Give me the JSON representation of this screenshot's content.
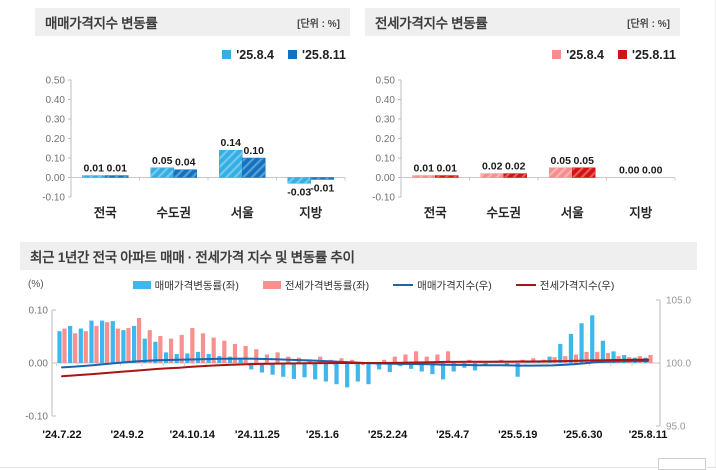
{
  "colors": {
    "header_bg": "#efefef",
    "axis": "#bdbdbd",
    "baseline": "#c9c9c9",
    "tick_text": "#737373",
    "sale_light": "#35aee4",
    "sale_dark": "#1272bf",
    "jeonse_light": "#f58f8f",
    "jeonse_dark": "#d51212",
    "trend_sale_bar": "#3db7ee",
    "trend_jeonse_bar": "#f98f8f",
    "trend_sale_line": "#1b65ae",
    "trend_jeonse_line": "#a81613"
  },
  "chart_data": [
    {
      "type": "bar",
      "title": "매매가격지수 변동률",
      "unit_label": "[단위 : %]",
      "categories": [
        "전국",
        "수도권",
        "서울",
        "지방"
      ],
      "series": [
        {
          "name": "'25.8.4",
          "color": "#35aee4",
          "values": [
            0.01,
            0.05,
            0.14,
            -0.03
          ]
        },
        {
          "name": "'25.8.11",
          "color": "#1272bf",
          "values": [
            0.01,
            0.04,
            0.1,
            -0.01
          ]
        }
      ],
      "ylim": [
        -0.1,
        0.5
      ],
      "yticks": [
        0.5,
        0.4,
        0.3,
        0.2,
        0.1,
        0.0,
        -0.1
      ],
      "legend_position": "top-right",
      "grid": false
    },
    {
      "type": "bar",
      "title": "전세가격지수 변동률",
      "unit_label": "[단위 : %]",
      "categories": [
        "전국",
        "수도권",
        "서울",
        "지방"
      ],
      "series": [
        {
          "name": "'25.8.4",
          "color": "#f58f8f",
          "values": [
            0.01,
            0.02,
            0.05,
            0.0
          ]
        },
        {
          "name": "'25.8.11",
          "color": "#d51212",
          "values": [
            0.01,
            0.02,
            0.05,
            0.0
          ]
        }
      ],
      "ylim": [
        -0.1,
        0.5
      ],
      "yticks": [
        0.5,
        0.4,
        0.3,
        0.2,
        0.1,
        0.0,
        -0.1
      ],
      "legend_position": "top-right",
      "grid": false
    },
    {
      "type": "combo",
      "title": "최근 1년간 전국 아파트 매매 · 전세가격 지수 및 변동률 추이",
      "left_axis_label": "(%)",
      "left_ylim": [
        -0.1,
        0.1
      ],
      "left_ticks": [
        0.1,
        0.0,
        -0.1
      ],
      "right_ylim": [
        95.0,
        105.0
      ],
      "right_ticks": [
        105.0,
        100.0,
        95.0
      ],
      "x_labels": [
        "'24.7.22",
        "'24.9.2",
        "'24.10.14",
        "'24.11.25",
        "'25.1.6",
        "'25.2.24",
        "'25.4.7",
        "'25.5.19",
        "'25.6.30",
        "'25.8.11"
      ],
      "bar_series": [
        {
          "name": "매매가격변동률(좌)",
          "color": "#3db7ee",
          "values": [
            0.06,
            0.07,
            0.065,
            0.08,
            0.08,
            0.079,
            0.062,
            0.07,
            0.046,
            0.04,
            0.02,
            0.017,
            0.018,
            0.021,
            0.017,
            0.013,
            0.012,
            0.008,
            -0.012,
            -0.018,
            -0.022,
            -0.026,
            -0.03,
            -0.027,
            -0.031,
            -0.035,
            -0.04,
            -0.046,
            -0.035,
            -0.04,
            -0.012,
            -0.017,
            -0.006,
            -0.011,
            -0.016,
            -0.021,
            -0.031,
            -0.016,
            -0.009,
            -0.014,
            -0.004,
            0.002,
            -0.005,
            -0.026,
            0.001,
            0.004,
            0.012,
            0.036,
            0.055,
            0.075,
            0.09,
            0.042,
            0.022,
            0.015,
            0.01,
            0.01
          ]
        },
        {
          "name": "전세가격변동률(좌)",
          "color": "#f98f8f",
          "values": [
            0.065,
            0.056,
            0.06,
            0.07,
            0.077,
            0.065,
            0.066,
            0.085,
            0.062,
            0.051,
            0.046,
            0.053,
            0.066,
            0.056,
            0.048,
            0.042,
            0.036,
            0.032,
            0.026,
            0.016,
            0.02,
            0.012,
            0.01,
            0.007,
            0.012,
            0.006,
            0.009,
            0.006,
            -0.004,
            -0.002,
            0.006,
            0.012,
            0.016,
            0.022,
            0.012,
            0.016,
            0.022,
            0.003,
            0.006,
            0.004,
            0.003,
            0.006,
            0.004,
            0.006,
            0.009,
            0.006,
            0.011,
            0.013,
            0.016,
            0.021,
            0.021,
            0.019,
            0.013,
            0.011,
            0.013,
            0.015
          ]
        }
      ],
      "line_series": [
        {
          "name": "매매가격지수(우)",
          "color": "#1b65ae",
          "values": [
            99.65,
            99.7,
            99.76,
            99.83,
            99.91,
            99.99,
            100.06,
            100.13,
            100.18,
            100.22,
            100.24,
            100.26,
            100.28,
            100.3,
            100.32,
            100.33,
            100.34,
            100.35,
            100.34,
            100.32,
            100.3,
            100.27,
            100.24,
            100.21,
            100.18,
            100.14,
            100.1,
            100.06,
            100.02,
            99.98,
            99.96,
            99.94,
            99.93,
            99.92,
            99.91,
            99.89,
            99.86,
            99.85,
            99.84,
            99.82,
            99.82,
            99.82,
            99.81,
            99.79,
            99.79,
            99.8,
            99.81,
            99.85,
            99.9,
            99.97,
            100.06,
            100.1,
            100.12,
            100.14,
            100.15,
            100.16
          ]
        },
        {
          "name": "전세가격지수(우)",
          "color": "#a81613",
          "values": [
            98.95,
            99.01,
            99.07,
            99.13,
            99.2,
            99.27,
            99.33,
            99.4,
            99.47,
            99.53,
            99.58,
            99.63,
            99.69,
            99.74,
            99.79,
            99.83,
            99.86,
            99.89,
            99.92,
            99.93,
            99.95,
            99.96,
            99.97,
            99.98,
            99.99,
            99.99,
            100.0,
            100.0,
            100.0,
            100.0,
            100.0,
            100.01,
            100.02,
            100.04,
            100.05,
            100.07,
            100.09,
            100.09,
            100.1,
            100.1,
            100.1,
            100.11,
            100.11,
            100.12,
            100.12,
            100.13,
            100.14,
            100.15,
            100.17,
            100.19,
            100.21,
            100.22,
            100.24,
            100.25,
            100.26,
            100.27
          ]
        }
      ],
      "legend_position": "top",
      "grid": false
    }
  ]
}
